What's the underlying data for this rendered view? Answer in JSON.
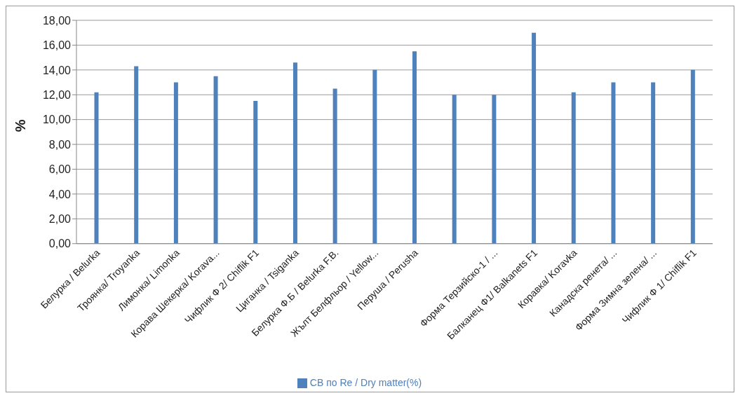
{
  "chart_data": {
    "type": "bar",
    "ylabel": "%",
    "categories": [
      "Белурка / Belurka",
      "Троянка/ Troyanka",
      "Лимонка/ Limonka",
      "Корава Шекерка/ Korava...",
      "Чифлик Ф 2/ Chiflik F1",
      "Циганка / Tsiganka",
      "Белурка Ф.Б / Belurka F.B.",
      "Жълт Белфльор / Yellow...",
      "Перуша / Perusha",
      null,
      "Форма Терзийско-1 / ...",
      "Балканец Ф1/ Balkanets F1",
      "Коравка/ Koravka",
      "Канадска ренета/ ...",
      "Форма Зимна зелена/ ...",
      "Чифлик Ф 1/ Chiflik F1"
    ],
    "series": [
      {
        "name": "СВ по Re / Dry matter(%)",
        "color": "#4f81bd",
        "values": [
          12.2,
          14.3,
          13,
          13.5,
          11.5,
          14.6,
          12.5,
          14,
          15.5,
          12,
          12,
          17,
          12.2,
          13,
          13,
          14
        ]
      }
    ],
    "ylim": [
      0,
      18
    ],
    "yticks": [
      {
        "value": 0,
        "label": "0,00"
      },
      {
        "value": 2,
        "label": "2,00"
      },
      {
        "value": 4,
        "label": "4,00"
      },
      {
        "value": 6,
        "label": "6,00"
      },
      {
        "value": 8,
        "label": "8,00"
      },
      {
        "value": 10,
        "label": "10,00"
      },
      {
        "value": 12,
        "label": "12,00"
      },
      {
        "value": 14,
        "label": "14,00"
      },
      {
        "value": 16,
        "label": "16,00"
      },
      {
        "value": 18,
        "label": "18,00"
      }
    ],
    "grid": "y",
    "legend": "bottom"
  }
}
